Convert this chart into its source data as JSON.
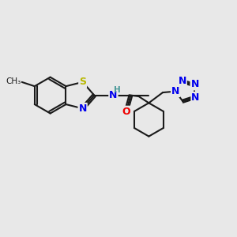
{
  "bg_color": "#e8e8e8",
  "bond_color": "#1a1a1a",
  "bond_width": 1.5,
  "atom_colors": {
    "S": "#b8b800",
    "N": "#0000ee",
    "O": "#ee0000",
    "H": "#4a9999",
    "C": "#1a1a1a"
  },
  "figsize": [
    3.0,
    3.0
  ],
  "dpi": 100
}
